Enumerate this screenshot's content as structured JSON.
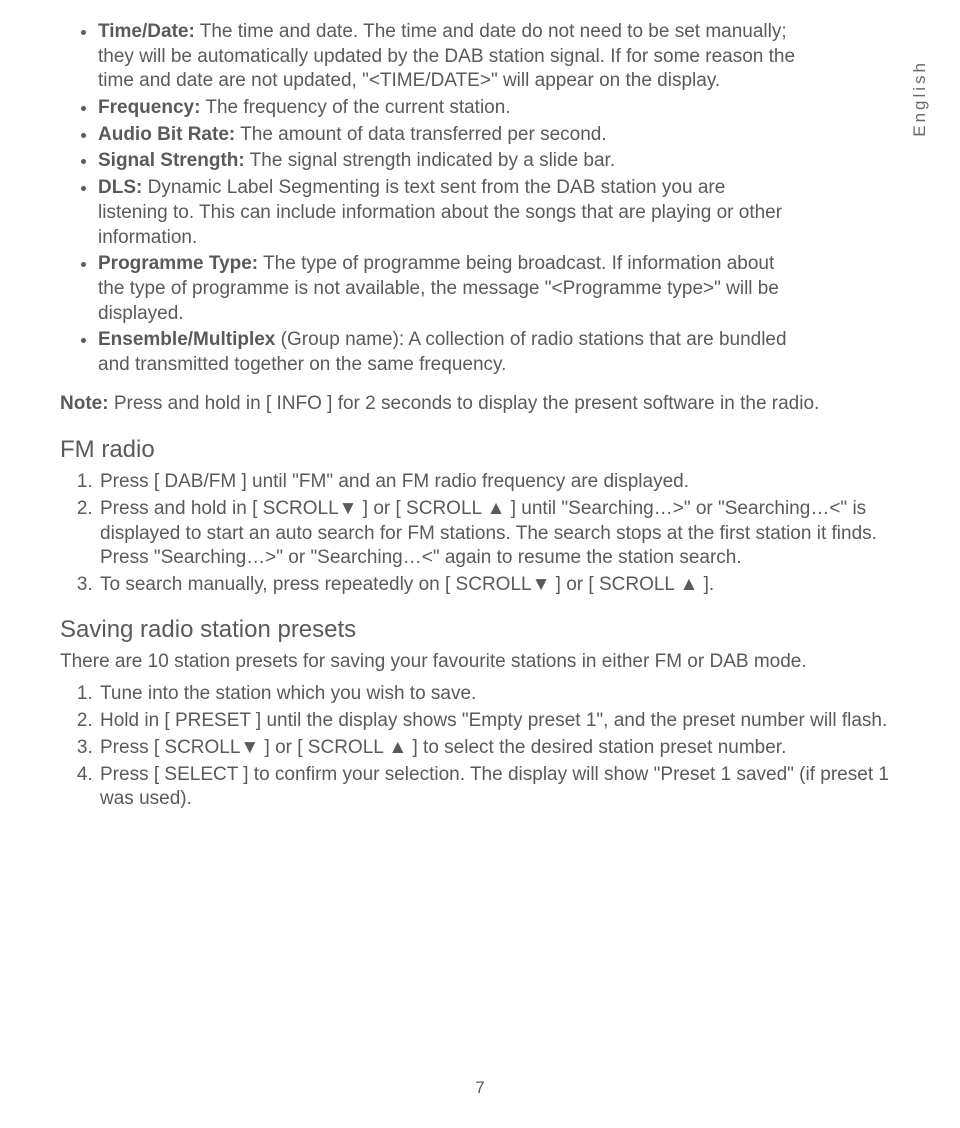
{
  "language_tab": "English",
  "bullets": [
    {
      "bold": "Time/Date:",
      "text": " The time and date. The time and date do not need to be set manually; they will be automatically updated by the DAB station signal. If for some reason the time and date are not updated, \"<TIME/DATE>\" will appear on the display."
    },
    {
      "bold": "Frequency:",
      "text": " The frequency of the current station."
    },
    {
      "bold": "Audio Bit Rate:",
      "text": " The amount of data transferred per second."
    },
    {
      "bold": "Signal Strength:",
      "text": " The signal strength indicated by a slide bar."
    },
    {
      "bold": "DLS:",
      "text": " Dynamic Label Segmenting is text sent from the DAB station you are listening to. This can include information about the songs that are playing or other information."
    },
    {
      "bold": "Programme Type:",
      "text": " The type of programme being broadcast. If information about the type of programme is not available, the message \"<Programme type>\" will be displayed."
    },
    {
      "bold": "Ensemble/Multiplex",
      "text": " (Group name): A collection of radio stations that are bundled and transmitted together on the same frequency."
    }
  ],
  "note_bold": "Note:",
  "note_text": " Press and hold in [ INFO ] for 2 seconds to display the present software in the radio.",
  "fm_heading": "FM radio",
  "fm_steps": [
    "Press [ DAB/FM ] until \"FM\" and an FM radio frequency are displayed.",
    "Press and hold in [ SCROLL▼ ] or [ SCROLL ▲ ] until \"Searching…>\" or \"Searching…<\" is displayed to start an auto search for FM stations. The search stops at the first station it finds. Press \"Searching…>\" or \"Searching…<\" again to resume the station search.",
    "To search manually, press repeatedly on [ SCROLL▼ ] or [ SCROLL ▲ ]."
  ],
  "presets_heading": "Saving radio station presets",
  "presets_intro": "There are 10 station presets for saving your favourite stations in either FM or DAB mode.",
  "presets_steps": [
    "Tune into the station which you wish to save.",
    "Hold in [ PRESET ] until the display shows \"Empty preset 1\", and the preset number will flash.",
    "Press [ SCROLL▼ ] or [ SCROLL ▲ ] to select the desired station preset number.",
    "Press [ SELECT ] to confirm your selection. The display will show \"Preset 1 saved\" (if preset 1 was used)."
  ],
  "page_number": "7"
}
